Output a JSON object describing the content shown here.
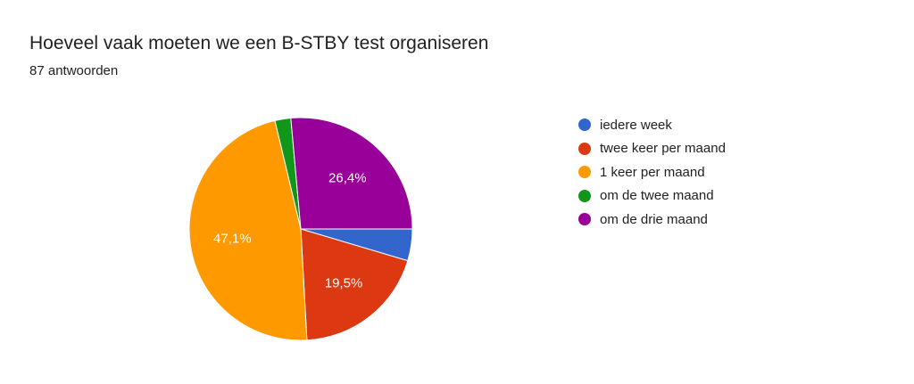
{
  "header": {
    "title": "Hoeveel vaak moeten we een B-STBY test organiseren",
    "responses": "87 antwoorden"
  },
  "chart_data": {
    "type": "pie",
    "title": "Hoeveel vaak moeten we een B-STBY test organiseren",
    "categories": [
      "iedere week",
      "twee keer per maand",
      "1 keer per maand",
      "om de twee maand",
      "om de drie maand"
    ],
    "values": [
      4.6,
      19.5,
      47.1,
      2.3,
      26.4
    ],
    "labels": [
      "",
      "19,5%",
      "47,1%",
      "",
      "26,4%"
    ],
    "colors": [
      "#3366cc",
      "#dc3912",
      "#ff9900",
      "#109618",
      "#990099"
    ],
    "legend": "right",
    "start": "3 o'clock",
    "direction": "clockwise"
  }
}
